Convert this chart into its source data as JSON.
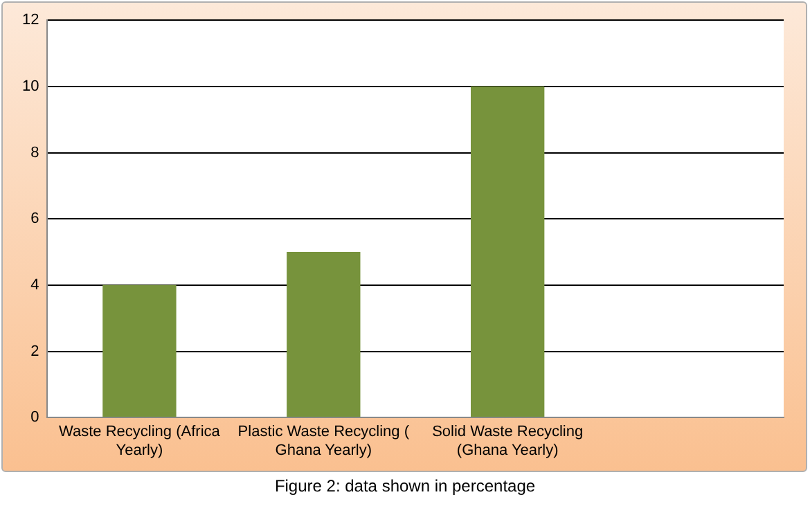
{
  "chart_data": {
    "type": "bar",
    "categories": [
      "Waste Recycling (Africa Yearly)",
      "Plastic Waste Recycling ( Ghana Yearly)",
      "Solid Waste Recycling (Ghana Yearly)",
      null
    ],
    "values": [
      4,
      5,
      10,
      null
    ],
    "color": "#77933c",
    "ylim": [
      0,
      12
    ],
    "yticks": [
      0,
      2,
      4,
      6,
      8,
      10,
      12
    ],
    "grid": "y",
    "annotations": [
      "Figure 2: data shown in percentage"
    ]
  }
}
